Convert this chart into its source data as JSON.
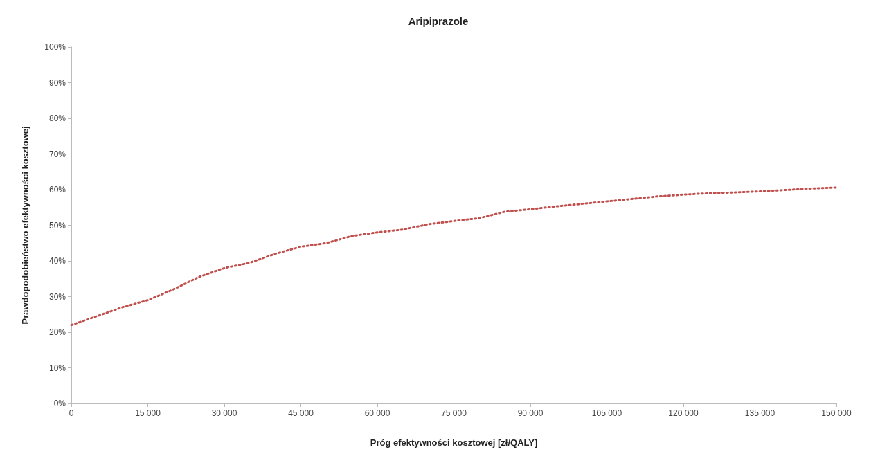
{
  "chart_data": {
    "type": "line",
    "title": "Aripiprazole",
    "xlabel": "Próg efektywności kosztowej [zł/QALY]",
    "ylabel": "Prawdopodobieństwo efektywności kosztowej",
    "x": [
      0,
      5000,
      10000,
      15000,
      20000,
      25000,
      30000,
      35000,
      40000,
      45000,
      50000,
      55000,
      60000,
      65000,
      70000,
      75000,
      80000,
      85000,
      90000,
      95000,
      100000,
      105000,
      110000,
      115000,
      120000,
      125000,
      130000,
      135000,
      140000,
      145000,
      150000
    ],
    "series": [
      {
        "color": "#c0504d",
        "values": [
          22,
          24.5,
          27,
          29,
          32,
          35.5,
          38,
          39.5,
          42,
          44,
          45,
          47,
          48,
          48.8,
          50.3,
          51.2,
          52,
          53.8,
          54.5,
          55.3,
          56,
          56.7,
          57.4,
          58.1,
          58.6,
          59,
          59.2,
          59.5,
          59.9,
          60.3,
          60.6
        ]
      }
    ],
    "xlim": [
      0,
      150000
    ],
    "xticks": [
      0,
      {
        "value": 15000,
        "label": "15 000"
      },
      {
        "value": 30000,
        "label": "30 000"
      },
      {
        "value": 45000,
        "label": "45 000"
      },
      {
        "value": 60000,
        "label": "60 000"
      },
      {
        "value": 75000,
        "label": "75 000"
      },
      {
        "value": 90000,
        "label": "90 000"
      },
      {
        "value": 105000,
        "label": "105 000"
      },
      {
        "value": 120000,
        "label": "120 000"
      },
      {
        "value": 135000,
        "label": "135 000"
      },
      {
        "value": 150000,
        "label": "150 000"
      }
    ],
    "ylim": [
      0,
      100
    ],
    "yticks": [
      {
        "value": 0,
        "label": "0%"
      },
      {
        "value": 10,
        "label": "10%"
      },
      {
        "value": 20,
        "label": "20%"
      },
      {
        "value": 30,
        "label": "30%"
      },
      {
        "value": 40,
        "label": "40%"
      },
      {
        "value": 50,
        "label": "50%"
      },
      {
        "value": 60,
        "label": "60%"
      },
      {
        "value": 70,
        "label": "70%"
      },
      {
        "value": 80,
        "label": "80%"
      },
      {
        "value": 90,
        "label": "90%"
      },
      {
        "value": 100,
        "label": "100%"
      }
    ],
    "grid": false,
    "line_style": "dotted"
  }
}
